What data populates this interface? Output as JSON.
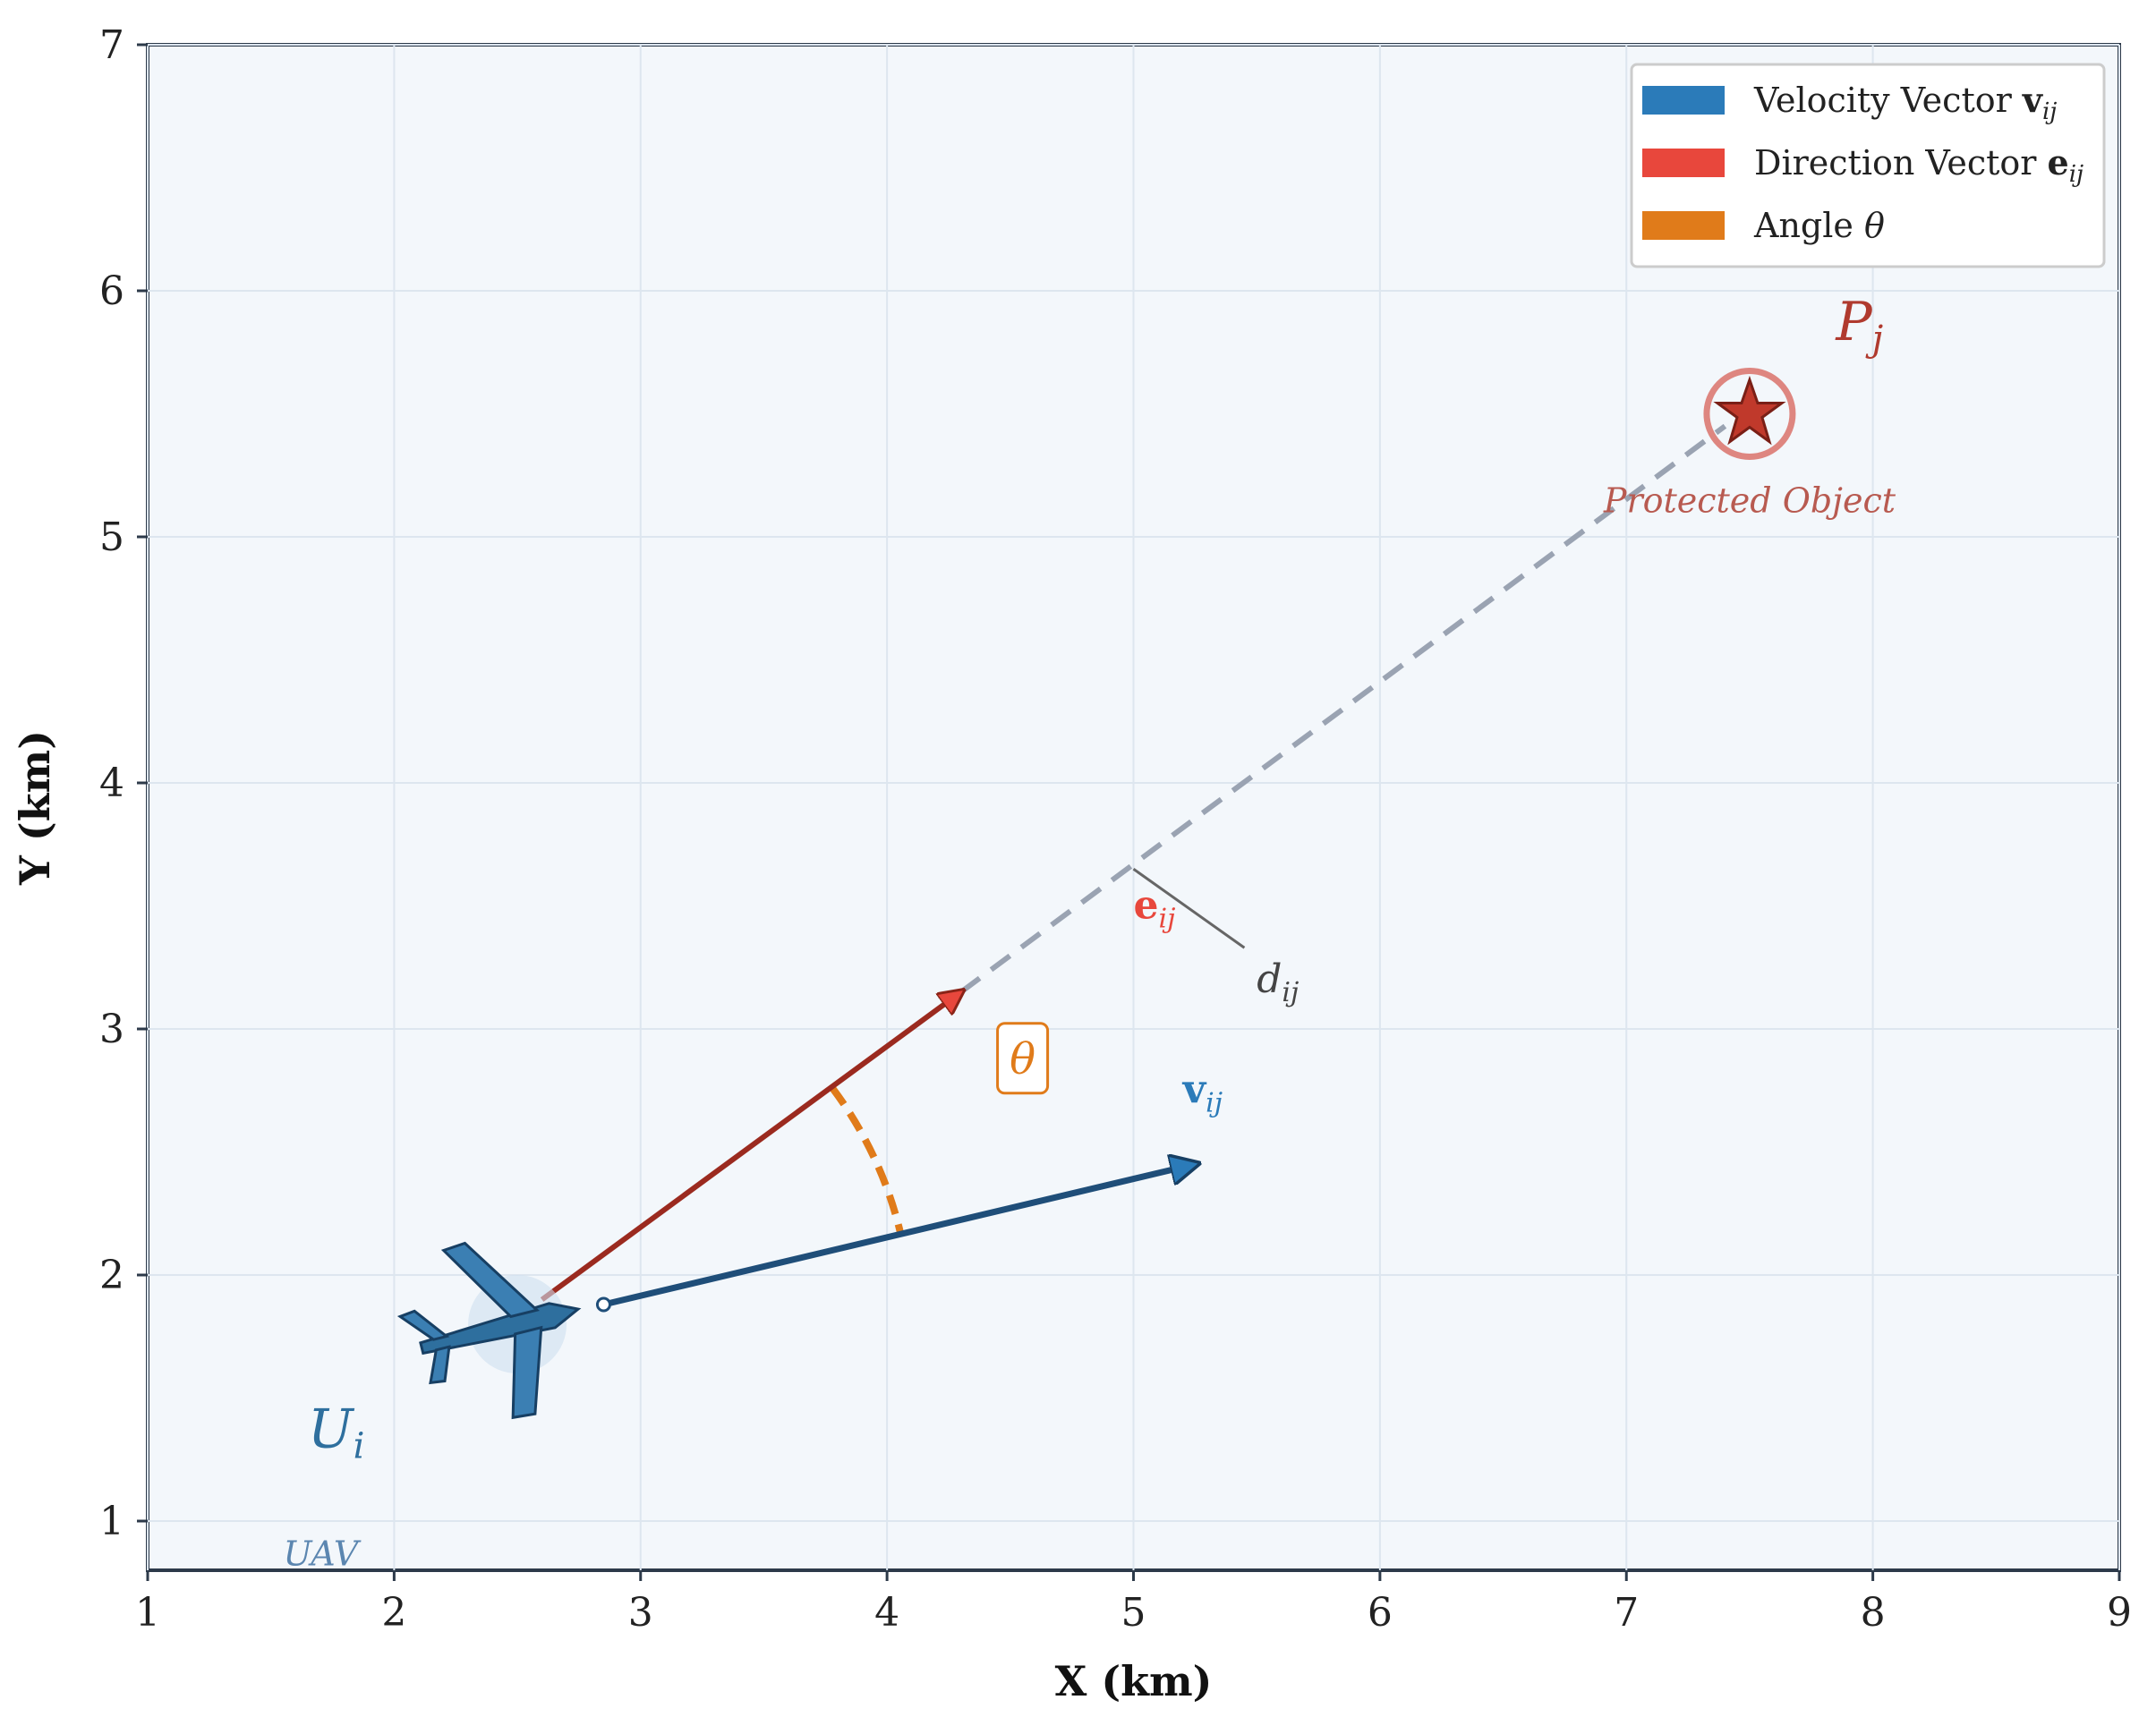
{
  "chart_data": {
    "type": "scatter",
    "xlabel": "X (km)",
    "ylabel": "Y (km)",
    "xlim": [
      1,
      9
    ],
    "ylim": [
      0.8,
      7
    ],
    "x_ticks": [
      1,
      2,
      3,
      4,
      5,
      6,
      7,
      8,
      9
    ],
    "y_ticks": [
      1,
      2,
      3,
      4,
      5,
      6,
      7
    ],
    "grid": true,
    "legend_position": "top-right",
    "legend": [
      {
        "label": "Velocity Vector ",
        "symbol": "v",
        "sub": "ij",
        "color": "#2b7bb9"
      },
      {
        "label": "Direction Vector ",
        "symbol": "e",
        "sub": "ij",
        "color": "#e8473c"
      },
      {
        "label": "Angle ",
        "symbol": "θ",
        "sub": "",
        "color": "#e07b1a"
      }
    ],
    "uav": {
      "x": 2.5,
      "y": 1.8,
      "label": "U",
      "label_sub": "i",
      "caption": "UAV",
      "color": "#2e6f9e"
    },
    "protected_object": {
      "x": 7.5,
      "y": 5.5,
      "label": "P",
      "label_sub": "j",
      "caption": "Protected Object",
      "color": "#b03a2e"
    },
    "velocity_vector": {
      "from": [
        2.85,
        1.88
      ],
      "to": [
        5.25,
        2.45
      ],
      "label": "v",
      "label_sub": "ij",
      "color": "#1f4e79"
    },
    "direction_vector": {
      "from": [
        2.6,
        1.9
      ],
      "to": [
        4.3,
        3.15
      ],
      "label": "e",
      "label_sub": "ij",
      "color": "#9b2a1f"
    },
    "line_of_sight": {
      "from": [
        4.3,
        3.15
      ],
      "to": [
        7.4,
        5.45
      ],
      "color": "#9aa3b2"
    },
    "distance_label": {
      "text": "d",
      "sub": "ij"
    },
    "angle": {
      "label": "θ",
      "color": "#e07b1a"
    }
  }
}
